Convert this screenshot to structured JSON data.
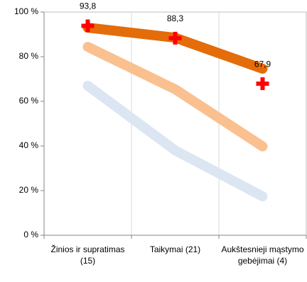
{
  "chart_data": {
    "type": "line",
    "categories": [
      "Žinios ir supratimas (15)",
      "Taikymai (21)",
      "Aukštesnieji mąstymo gebėjimai (4)"
    ],
    "series": [
      {
        "color": "#e46c0a",
        "values": [
          93,
          88.5,
          74.6
        ]
      },
      {
        "color": "#fac090",
        "values": [
          84.4,
          65.4,
          39.8
        ]
      },
      {
        "color": "#dce6f2",
        "values": [
          67,
          38,
          17.4
        ]
      }
    ],
    "markers": {
      "color": "#ff0000",
      "values": [
        93.8,
        88.3,
        67.9
      ],
      "value_labels": [
        "93,8",
        "88,3",
        "67,9"
      ]
    },
    "ylim": [
      0,
      100
    ],
    "yticks": [
      {
        "value": 0,
        "label": "0 %"
      },
      {
        "value": 20,
        "label": "20 %"
      },
      {
        "value": 40,
        "label": "40 %"
      },
      {
        "value": 60,
        "label": "60 %"
      },
      {
        "value": 80,
        "label": "80 %"
      },
      {
        "value": 100,
        "label": "100 %"
      }
    ]
  }
}
